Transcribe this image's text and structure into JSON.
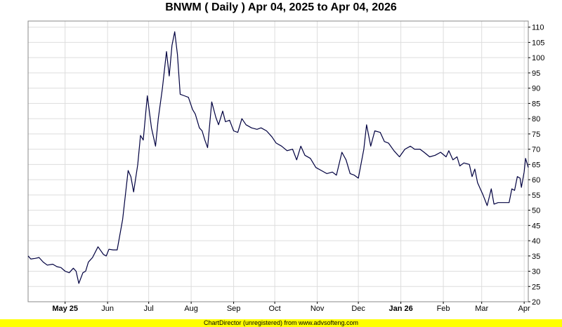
{
  "chart_data": {
    "type": "line",
    "title": "BNWM ( Daily ) Apr 04, 2025 to Apr 04, 2026",
    "xlabel": "",
    "ylabel": "",
    "x_range": [
      "2025-04-04",
      "2026-04-04"
    ],
    "ylim": [
      20,
      112
    ],
    "y_ticks": [
      20,
      25,
      30,
      35,
      40,
      45,
      50,
      55,
      60,
      65,
      70,
      75,
      80,
      85,
      90,
      95,
      100,
      105,
      110
    ],
    "y_axis_position": "right",
    "grid": true,
    "line_color": "#000040",
    "x_ticks": [
      {
        "label": "May 25",
        "date": "2025-05-01",
        "bold": true
      },
      {
        "label": "Jun",
        "date": "2025-06-01",
        "bold": false
      },
      {
        "label": "Jul",
        "date": "2025-07-01",
        "bold": false
      },
      {
        "label": "Aug",
        "date": "2025-08-01",
        "bold": false
      },
      {
        "label": "Sep",
        "date": "2025-09-01",
        "bold": false
      },
      {
        "label": "Oct",
        "date": "2025-10-01",
        "bold": false
      },
      {
        "label": "Nov",
        "date": "2025-11-01",
        "bold": false
      },
      {
        "label": "Dec",
        "date": "2025-12-01",
        "bold": false
      },
      {
        "label": "Jan 26",
        "date": "2026-01-01",
        "bold": true
      },
      {
        "label": "Feb",
        "date": "2026-02-01",
        "bold": false
      },
      {
        "label": "Mar",
        "date": "2026-03-01",
        "bold": false
      },
      {
        "label": "Apr",
        "date": "2026-04-01",
        "bold": false
      }
    ],
    "series": [
      {
        "points": [
          [
            "2025-04-04",
            35
          ],
          [
            "2025-04-06",
            34
          ],
          [
            "2025-04-09",
            34.2
          ],
          [
            "2025-04-12",
            34.5
          ],
          [
            "2025-04-15",
            33
          ],
          [
            "2025-04-18",
            32
          ],
          [
            "2025-04-22",
            32.3
          ],
          [
            "2025-04-25",
            31.5
          ],
          [
            "2025-04-28",
            31.2
          ],
          [
            "2025-05-01",
            30
          ],
          [
            "2025-05-04",
            29.5
          ],
          [
            "2025-05-07",
            31
          ],
          [
            "2025-05-09",
            30
          ],
          [
            "2025-05-11",
            26
          ],
          [
            "2025-05-14",
            29.5
          ],
          [
            "2025-05-16",
            30
          ],
          [
            "2025-05-18",
            33
          ],
          [
            "2025-05-21",
            34.5
          ],
          [
            "2025-05-25",
            38
          ],
          [
            "2025-05-29",
            35.5
          ],
          [
            "2025-05-31",
            35
          ],
          [
            "2025-06-02",
            37.2
          ],
          [
            "2025-06-05",
            37
          ],
          [
            "2025-06-08",
            37
          ],
          [
            "2025-06-12",
            47
          ],
          [
            "2025-06-14",
            55
          ],
          [
            "2025-06-16",
            63
          ],
          [
            "2025-06-18",
            61
          ],
          [
            "2025-06-20",
            56
          ],
          [
            "2025-06-23",
            65
          ],
          [
            "2025-06-25",
            74.5
          ],
          [
            "2025-06-27",
            73
          ],
          [
            "2025-06-30",
            87.5
          ],
          [
            "2025-07-03",
            77
          ],
          [
            "2025-07-06",
            71
          ],
          [
            "2025-07-08",
            80
          ],
          [
            "2025-07-11",
            90
          ],
          [
            "2025-07-14",
            102
          ],
          [
            "2025-07-16",
            94
          ],
          [
            "2025-07-18",
            104
          ],
          [
            "2025-07-20",
            108.5
          ],
          [
            "2025-07-22",
            101
          ],
          [
            "2025-07-24",
            88
          ],
          [
            "2025-07-27",
            87.5
          ],
          [
            "2025-07-30",
            87
          ],
          [
            "2025-08-02",
            83
          ],
          [
            "2025-08-04",
            81.5
          ],
          [
            "2025-08-07",
            77
          ],
          [
            "2025-08-09",
            76
          ],
          [
            "2025-08-11",
            73
          ],
          [
            "2025-08-13",
            70.5
          ],
          [
            "2025-08-16",
            85.5
          ],
          [
            "2025-08-19",
            80.5
          ],
          [
            "2025-08-21",
            78
          ],
          [
            "2025-08-24",
            82.5
          ],
          [
            "2025-08-26",
            79
          ],
          [
            "2025-08-29",
            79.5
          ],
          [
            "2025-09-01",
            76
          ],
          [
            "2025-09-04",
            75.5
          ],
          [
            "2025-09-07",
            80
          ],
          [
            "2025-09-10",
            78
          ],
          [
            "2025-09-14",
            77
          ],
          [
            "2025-09-18",
            76.5
          ],
          [
            "2025-09-21",
            77
          ],
          [
            "2025-09-25",
            76
          ],
          [
            "2025-09-29",
            74
          ],
          [
            "2025-10-02",
            72
          ],
          [
            "2025-10-06",
            71
          ],
          [
            "2025-10-10",
            69.5
          ],
          [
            "2025-10-14",
            70
          ],
          [
            "2025-10-17",
            66.5
          ],
          [
            "2025-10-20",
            71
          ],
          [
            "2025-10-23",
            68
          ],
          [
            "2025-10-27",
            67
          ],
          [
            "2025-10-31",
            64
          ],
          [
            "2025-11-04",
            63
          ],
          [
            "2025-11-08",
            62
          ],
          [
            "2025-11-12",
            62.5
          ],
          [
            "2025-11-15",
            61.5
          ],
          [
            "2025-11-19",
            69
          ],
          [
            "2025-11-22",
            66.5
          ],
          [
            "2025-11-25",
            62
          ],
          [
            "2025-11-28",
            61.5
          ],
          [
            "2025-12-01",
            60.5
          ],
          [
            "2025-12-05",
            70
          ],
          [
            "2025-12-07",
            78
          ],
          [
            "2025-12-10",
            71
          ],
          [
            "2025-12-13",
            76
          ],
          [
            "2025-12-17",
            75.5
          ],
          [
            "2025-12-20",
            72.5
          ],
          [
            "2025-12-23",
            72
          ],
          [
            "2025-12-27",
            69.5
          ],
          [
            "2025-12-31",
            67.5
          ],
          [
            "2026-01-04",
            70
          ],
          [
            "2026-01-08",
            71
          ],
          [
            "2026-01-11",
            70
          ],
          [
            "2026-01-15",
            70
          ],
          [
            "2026-01-18",
            69
          ],
          [
            "2026-01-22",
            67.5
          ],
          [
            "2026-01-26",
            68
          ],
          [
            "2026-01-30",
            69
          ],
          [
            "2026-02-03",
            67.5
          ],
          [
            "2026-02-05",
            69.5
          ],
          [
            "2026-02-08",
            66.5
          ],
          [
            "2026-02-11",
            67.5
          ],
          [
            "2026-02-13",
            64.5
          ],
          [
            "2026-02-16",
            65.5
          ],
          [
            "2026-02-20",
            65
          ],
          [
            "2026-02-22",
            61
          ],
          [
            "2026-02-24",
            63.5
          ],
          [
            "2026-02-26",
            59
          ],
          [
            "2026-02-28",
            57
          ],
          [
            "2026-03-02",
            55
          ],
          [
            "2026-03-05",
            51.5
          ],
          [
            "2026-03-08",
            57
          ],
          [
            "2026-03-10",
            52
          ],
          [
            "2026-03-13",
            52.5
          ],
          [
            "2026-03-17",
            52.5
          ],
          [
            "2026-03-21",
            52.5
          ],
          [
            "2026-03-23",
            57
          ],
          [
            "2026-03-25",
            56.5
          ],
          [
            "2026-03-27",
            61
          ],
          [
            "2026-03-29",
            60.5
          ],
          [
            "2026-03-30",
            57.5
          ],
          [
            "2026-04-01",
            62.5
          ],
          [
            "2026-04-02",
            67
          ],
          [
            "2026-04-04",
            64
          ]
        ]
      }
    ]
  },
  "footer": {
    "text": "ChartDirector (unregistered) from www.advsofteng.com"
  }
}
